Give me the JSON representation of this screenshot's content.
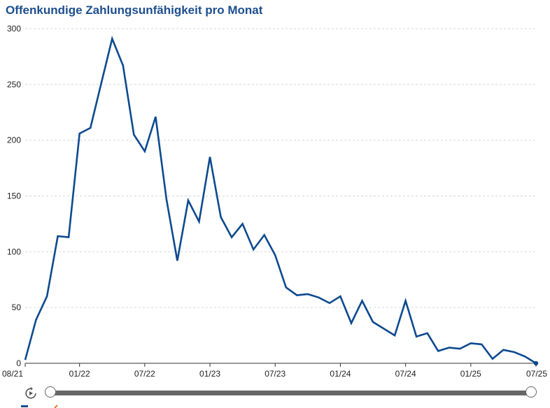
{
  "title": "Offenkundige Zahlungsunfähigkeit pro Monat",
  "colors": {
    "title": "#1d4e8f",
    "line": "#0d4a8f",
    "grid": "#d6d6d6",
    "slider": "#666666",
    "logo_accent": "#e07a2f"
  },
  "icons": {
    "play": "replay-play-icon"
  },
  "chart_data": {
    "type": "line",
    "title": "Offenkundige Zahlungsunfähigkeit pro Monat",
    "xlabel": "",
    "ylabel": "",
    "ylim": [
      0,
      300
    ],
    "yticks": [
      0,
      50,
      100,
      150,
      200,
      250,
      300
    ],
    "grid": true,
    "legend": "none",
    "xtick_labels": [
      "08/21",
      "01/22",
      "07/22",
      "01/23",
      "07/23",
      "01/24",
      "07/24",
      "01/25",
      "07/25"
    ],
    "x": [
      "08/21",
      "09/21",
      "10/21",
      "11/21",
      "12/21",
      "01/22",
      "02/22",
      "03/22",
      "04/22",
      "05/22",
      "06/22",
      "07/22",
      "08/22",
      "09/22",
      "10/22",
      "11/22",
      "12/22",
      "01/23",
      "02/23",
      "03/23",
      "04/23",
      "05/23",
      "06/23",
      "07/23",
      "08/23",
      "09/23",
      "10/23",
      "11/23",
      "12/23",
      "01/24",
      "02/24",
      "03/24",
      "04/24",
      "05/24",
      "06/24",
      "07/24",
      "08/24",
      "09/24",
      "10/24",
      "11/24",
      "12/24",
      "01/25",
      "02/25",
      "03/25",
      "04/25",
      "05/25",
      "06/25",
      "07/25"
    ],
    "series": [
      {
        "values": [
          3,
          39,
          60,
          114,
          113,
          206,
          211,
          251,
          291,
          267,
          205,
          190,
          221,
          147,
          92,
          146,
          127,
          185,
          131,
          113,
          125,
          102,
          115,
          97,
          68,
          61,
          62,
          59,
          54,
          60,
          36,
          56,
          37,
          31,
          25,
          56,
          24,
          27,
          11,
          14,
          13,
          18,
          17,
          4,
          12,
          10,
          6,
          0
        ]
      }
    ]
  }
}
